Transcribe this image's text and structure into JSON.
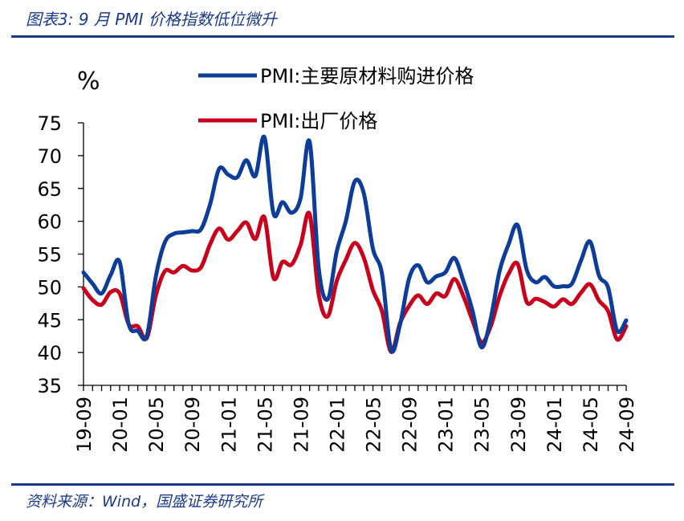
{
  "header": {
    "title": "图表3:  9 月 PMI 价格指数低位微升"
  },
  "footer": {
    "source": "资料来源：Wind，国盛证券研究所"
  },
  "chart_data": {
    "type": "line",
    "unit_label": "%",
    "ylim": [
      35,
      75
    ],
    "yticks": [
      35,
      40,
      45,
      50,
      55,
      60,
      65,
      70,
      75
    ],
    "xticks": [
      "19-09",
      "20-01",
      "20-05",
      "20-09",
      "21-01",
      "21-05",
      "21-09",
      "22-01",
      "22-05",
      "22-09",
      "23-01",
      "23-05",
      "23-09",
      "24-01",
      "24-05",
      "24-09"
    ],
    "x": [
      "19-09",
      "19-10",
      "19-11",
      "19-12",
      "20-01",
      "20-02",
      "20-03",
      "20-04",
      "20-05",
      "20-06",
      "20-07",
      "20-08",
      "20-09",
      "20-10",
      "20-11",
      "20-12",
      "21-01",
      "21-02",
      "21-03",
      "21-04",
      "21-05",
      "21-06",
      "21-07",
      "21-08",
      "21-09",
      "21-10",
      "21-11",
      "21-12",
      "22-01",
      "22-02",
      "22-03",
      "22-04",
      "22-05",
      "22-06",
      "22-07",
      "22-08",
      "22-09",
      "22-10",
      "22-11",
      "22-12",
      "23-01",
      "23-02",
      "23-03",
      "23-04",
      "23-05",
      "23-06",
      "23-07",
      "23-08",
      "23-09",
      "23-10",
      "23-11",
      "23-12",
      "24-01",
      "24-02",
      "24-03",
      "24-04",
      "24-05",
      "24-06",
      "24-07",
      "24-08",
      "24-09"
    ],
    "series": [
      {
        "name": "PMI:主要原材料购进价格",
        "color": "#0d3d99",
        "values": [
          52.2,
          50.5,
          49.0,
          51.8,
          53.8,
          44.3,
          43.3,
          42.5,
          51.6,
          56.8,
          58.1,
          58.3,
          58.5,
          58.8,
          62.6,
          68.0,
          67.1,
          66.7,
          69.3,
          66.9,
          72.8,
          61.2,
          62.9,
          61.3,
          63.5,
          72.1,
          52.9,
          48.1,
          55.4,
          60.0,
          66.1,
          64.2,
          55.8,
          52.0,
          40.4,
          44.3,
          51.3,
          53.3,
          50.7,
          51.6,
          52.2,
          54.4,
          50.9,
          46.4,
          40.8,
          45.0,
          52.4,
          56.5,
          59.4,
          52.6,
          50.7,
          51.5,
          50.1,
          50.1,
          50.5,
          54.0,
          56.9,
          51.7,
          49.9,
          43.3,
          44.9
        ]
      },
      {
        "name": "PMI:出厂价格",
        "color": "#c8001c",
        "values": [
          49.8,
          48.0,
          47.3,
          49.2,
          49.0,
          44.3,
          44.0,
          42.2,
          48.7,
          52.4,
          52.2,
          53.2,
          52.5,
          53.0,
          56.5,
          58.9,
          57.2,
          58.5,
          59.8,
          57.3,
          60.6,
          51.4,
          53.8,
          53.4,
          56.4,
          61.1,
          48.9,
          45.5,
          50.9,
          54.1,
          56.7,
          54.4,
          49.5,
          46.3,
          40.1,
          44.5,
          47.1,
          48.7,
          47.4,
          49.0,
          48.6,
          51.2,
          48.6,
          44.9,
          41.6,
          43.9,
          48.6,
          52.0,
          53.5,
          47.7,
          48.2,
          47.7,
          47.0,
          48.1,
          47.4,
          49.1,
          50.4,
          47.9,
          46.3,
          42.0,
          44.0
        ]
      }
    ],
    "legend_position": "top-right",
    "grid": false
  }
}
